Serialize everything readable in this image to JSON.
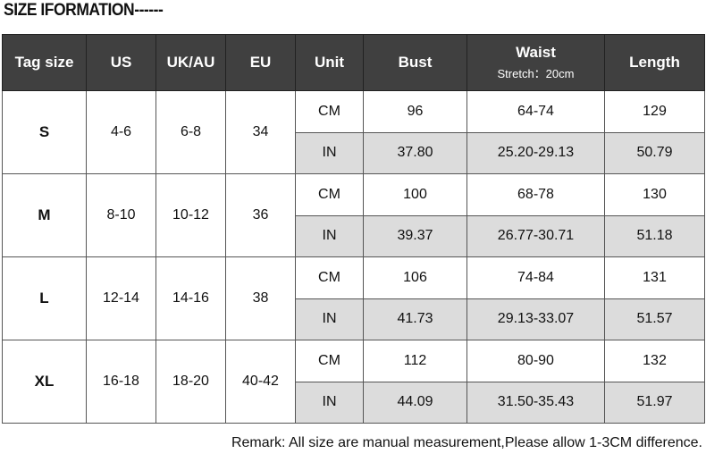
{
  "title": "SIZE IFORMATION------",
  "headers": [
    "Tag size",
    "US",
    "UK/AU",
    "EU",
    "Unit",
    "Bust",
    "Waist",
    "Length"
  ],
  "waist_sub": "Stretch：20cm",
  "colors": {
    "header_bg": "#404040",
    "in_row_bg": "#dcdcdc"
  },
  "rows": [
    {
      "tag": "S",
      "us": "4-6",
      "ukau": "6-8",
      "eu": "34",
      "cm": {
        "unit": "CM",
        "bust": "96",
        "waist": "64-74",
        "length": "129"
      },
      "in": {
        "unit": "IN",
        "bust": "37.80",
        "waist": "25.20-29.13",
        "length": "50.79"
      }
    },
    {
      "tag": "M",
      "us": "8-10",
      "ukau": "10-12",
      "eu": "36",
      "cm": {
        "unit": "CM",
        "bust": "100",
        "waist": "68-78",
        "length": "130"
      },
      "in": {
        "unit": "IN",
        "bust": "39.37",
        "waist": "26.77-30.71",
        "length": "51.18"
      }
    },
    {
      "tag": "L",
      "us": "12-14",
      "ukau": "14-16",
      "eu": "38",
      "cm": {
        "unit": "CM",
        "bust": "106",
        "waist": "74-84",
        "length": "131"
      },
      "in": {
        "unit": "IN",
        "bust": "41.73",
        "waist": "29.13-33.07",
        "length": "51.57"
      }
    },
    {
      "tag": "XL",
      "us": "16-18",
      "ukau": "18-20",
      "eu": "40-42",
      "cm": {
        "unit": "CM",
        "bust": "112",
        "waist": "80-90",
        "length": "132"
      },
      "in": {
        "unit": "IN",
        "bust": "44.09",
        "waist": "31.50-35.43",
        "length": "51.97"
      }
    }
  ],
  "remark": "Remark: All size are manual measurement,Please allow 1-3CM difference."
}
